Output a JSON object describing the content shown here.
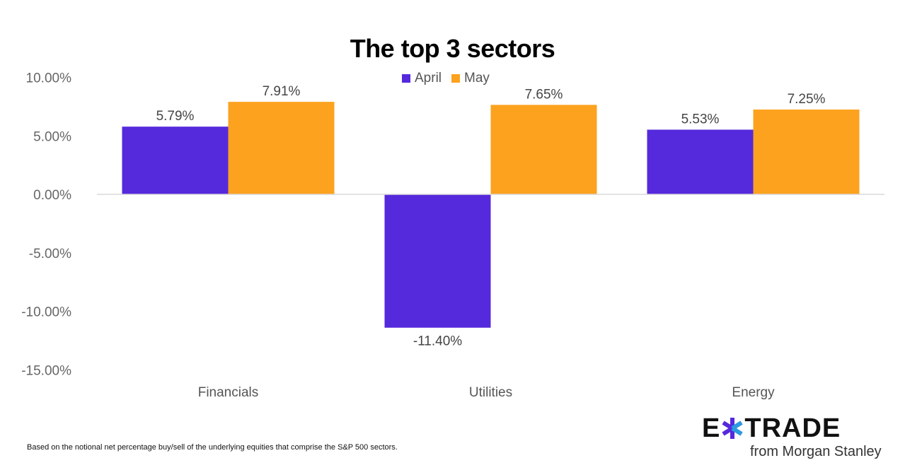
{
  "chart_data": {
    "type": "bar",
    "title": "The top 3 sectors",
    "categories": [
      "Financials",
      "Utilities",
      "Energy"
    ],
    "series": [
      {
        "name": "April",
        "values": [
          5.79,
          -11.4,
          5.53
        ],
        "labels": [
          "5.79%",
          "-11.40%",
          "5.53%"
        ],
        "color": "#5529dc"
      },
      {
        "name": "May",
        "values": [
          7.91,
          7.65,
          7.25
        ],
        "labels": [
          "7.91%",
          "7.65%",
          "7.25%"
        ],
        "color": "#fca21f"
      }
    ],
    "yticks": [
      10,
      5,
      0,
      -5,
      -10,
      -15
    ],
    "ytick_labels": [
      "10.00%",
      "5.00%",
      "0.00%",
      "-5.00%",
      "-10.00%",
      "-15.00%"
    ],
    "ylim": [
      -15,
      10
    ],
    "grid": false,
    "legend": "top-center",
    "xlabel": "",
    "ylabel": ""
  },
  "footnote": "Based on the notional net percentage buy/sell of the underlying equities that comprise the S&P 500 sectors.",
  "logo": {
    "brand": "E*TRADE",
    "sub": "from Morgan Stanley"
  }
}
